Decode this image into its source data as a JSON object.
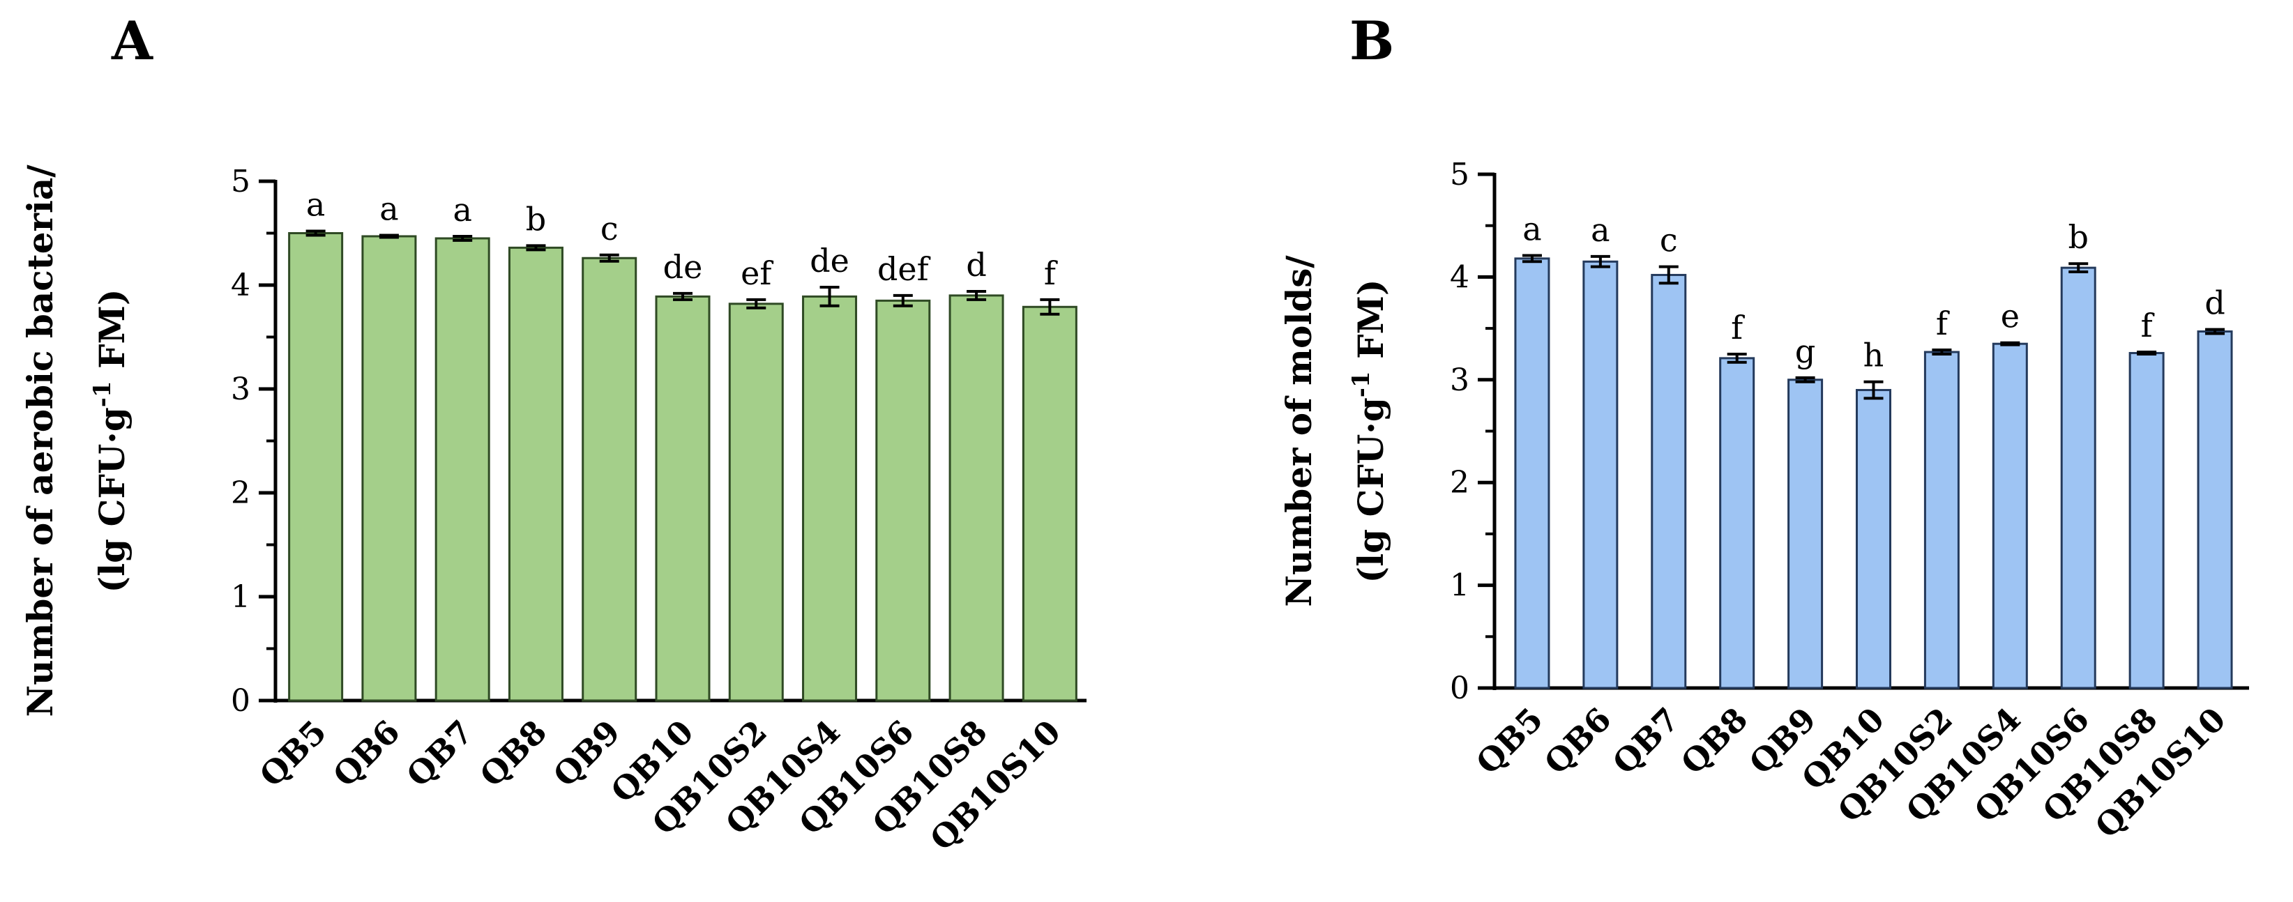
{
  "figure": {
    "panel_letters": [
      "A",
      "B"
    ]
  },
  "chart_data": [
    {
      "type": "bar",
      "panel": "A",
      "title": "",
      "ylabel_line1": "Number of aerobic bacteria/",
      "ylabel_line2_prefix": "(lg CFU·g",
      "ylabel_line2_sup": "-1",
      "ylabel_line2_suffix": " FM)",
      "xlabel": "",
      "ylim": [
        0,
        5
      ],
      "yticks": [
        0,
        1,
        2,
        3,
        4,
        5
      ],
      "minor_tick_step": 0.5,
      "grid": false,
      "bar_color": "#a4cf8a",
      "bar_edge_color": "#2f4a24",
      "categories": [
        "QB5",
        "QB6",
        "QB7",
        "QB8",
        "QB9",
        "QB10",
        "QB10S2",
        "QB10S4",
        "QB10S6",
        "QB10S8",
        "QB10S10"
      ],
      "values": [
        4.5,
        4.47,
        4.45,
        4.36,
        4.26,
        3.89,
        3.82,
        3.89,
        3.85,
        3.9,
        3.79
      ],
      "errors": [
        0.02,
        0.01,
        0.02,
        0.02,
        0.03,
        0.03,
        0.04,
        0.09,
        0.05,
        0.04,
        0.07
      ],
      "significance": [
        "a",
        "a",
        "a",
        "b",
        "c",
        "de",
        "ef",
        "de",
        "def",
        "d",
        "f"
      ]
    },
    {
      "type": "bar",
      "panel": "B",
      "title": "",
      "ylabel_line1": "Number of molds/",
      "ylabel_line2_prefix": "(lg CFU·g",
      "ylabel_line2_sup": "-1",
      "ylabel_line2_suffix": " FM)",
      "xlabel": "",
      "ylim": [
        0,
        5
      ],
      "yticks": [
        0,
        1,
        2,
        3,
        4,
        5
      ],
      "minor_tick_step": 0.5,
      "grid": false,
      "bar_color": "#9ec4f3",
      "bar_edge_color": "#243a5c",
      "categories": [
        "QB5",
        "QB6",
        "QB7",
        "QB8",
        "QB9",
        "QB10",
        "QB10S2",
        "QB10S4",
        "QB10S6",
        "QB10S8",
        "QB10S10"
      ],
      "values": [
        4.18,
        4.15,
        4.02,
        3.21,
        3.0,
        2.9,
        3.27,
        3.35,
        4.09,
        3.26,
        3.47
      ],
      "errors": [
        0.03,
        0.05,
        0.08,
        0.04,
        0.02,
        0.08,
        0.02,
        0.01,
        0.04,
        0.01,
        0.02
      ],
      "significance": [
        "a",
        "a",
        "c",
        "f",
        "g",
        "h",
        "f",
        "e",
        "b",
        "f",
        "d"
      ]
    }
  ]
}
